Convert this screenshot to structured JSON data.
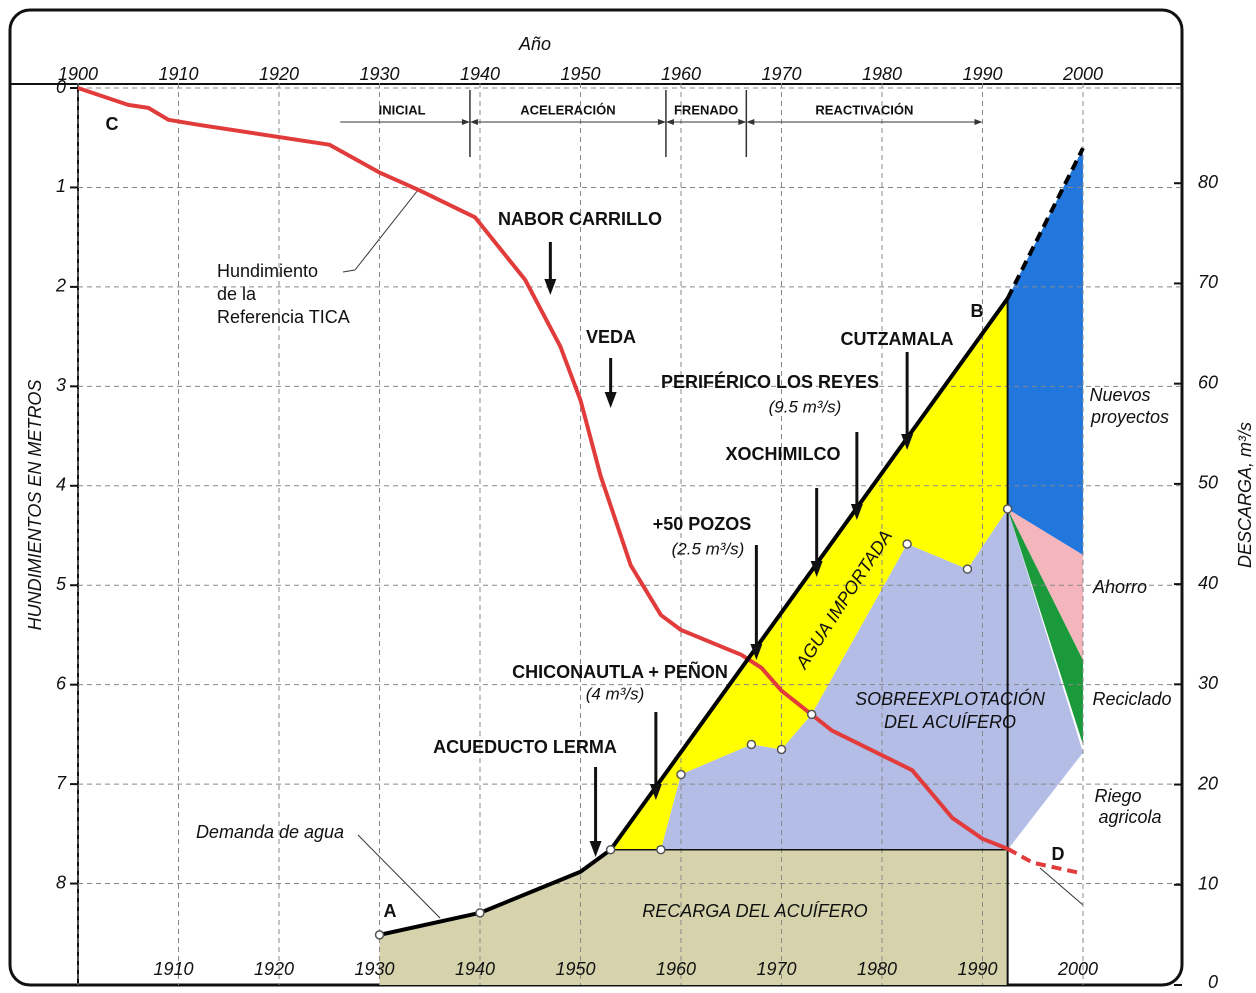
{
  "chart_data": {
    "type": "line",
    "xlabel": "Año",
    "ylabel": "HUNDIMIENTOS EN METROS",
    "y2label": "DESCARGA, m³/s",
    "xlim": [
      1900,
      2000
    ],
    "xticks": [
      1900,
      1910,
      1920,
      1930,
      1940,
      1950,
      1960,
      1970,
      1980,
      1990,
      2000
    ],
    "ylim": [
      0,
      9
    ],
    "yticks": [
      0,
      1,
      2,
      3,
      4,
      5,
      6,
      7,
      8
    ],
    "y_inverted": true,
    "y2lim": [
      0,
      90
    ],
    "y2ticks": [
      0,
      10,
      20,
      30,
      40,
      50,
      60,
      70,
      80
    ],
    "grid": true,
    "series": [
      {
        "color": "#e23b3b",
        "x": [
          1900,
          1905,
          1907,
          1909,
          1912,
          1925,
          1930,
          1934,
          1939.5,
          1944.5,
          1948,
          1950,
          1952,
          1955,
          1958,
          1960,
          1966,
          1968,
          1970,
          1975,
          1983,
          1987,
          1990,
          1992.5
        ],
        "values": [
          0,
          0.17,
          0.2,
          0.32,
          0.37,
          0.57,
          0.85,
          1.03,
          1.3,
          1.93,
          2.6,
          3.14,
          3.9,
          4.8,
          5.3,
          5.45,
          5.7,
          5.83,
          6.06,
          6.46,
          6.86,
          7.34,
          7.55,
          7.65
        ]
      },
      {
        "color": "#e23b3b",
        "dashed": true,
        "x": [
          1992.5,
          1995,
          2000
        ],
        "values": [
          7.65,
          7.79,
          7.9
        ]
      },
      {
        "color": "#000000",
        "axis": "y2",
        "x": [
          1930,
          1940,
          1950,
          1953,
          1992.5
        ],
        "values": [
          5,
          7.2,
          11.3,
          13.5,
          68.5
        ]
      },
      {
        "color": "#000000",
        "axis": "y2",
        "dashed": true,
        "x": [
          1992.5,
          2000
        ],
        "values": [
          68.5,
          83.5
        ]
      }
    ],
    "areas": [
      {
        "color": "#d6d3ac",
        "x": [
          1930,
          1940,
          1950,
          1953,
          1992.5,
          1992.5,
          1930
        ],
        "values": [
          5,
          7.2,
          11.3,
          13.5,
          13.5,
          0,
          0
        ]
      },
      {
        "color": "#ffff00",
        "x": [
          1953,
          1992.5,
          1992.5,
          1988.5,
          1982.5,
          1973,
          1970,
          1967,
          1960,
          1958
        ],
        "values": [
          13.5,
          68.5,
          47.5,
          41.5,
          44,
          27,
          23.5,
          24,
          21,
          13.5
        ]
      },
      {
        "color": "#b3bde6",
        "x": [
          1958,
          1960,
          1967,
          1970,
          1973,
          1982.5,
          1988.5,
          1992.5,
          2000,
          1992.5
        ],
        "values": [
          13.5,
          21,
          24,
          23.5,
          27,
          44,
          41.5,
          47.5,
          23.2,
          13.5
        ]
      },
      {
        "color": "#2277dd",
        "x": [
          1992.5,
          2000,
          2000,
          1992.5
        ],
        "values": [
          68.5,
          83.5,
          42.9,
          47.5
        ]
      },
      {
        "color": "#f5b5bd",
        "x": [
          1992.5,
          2000,
          2000
        ],
        "values": [
          47.5,
          42.9,
          32.4
        ]
      },
      {
        "color": "#1a9a3a",
        "x": [
          1992.5,
          2000,
          2000
        ],
        "values": [
          47.5,
          32.4,
          24
        ]
      }
    ],
    "phases": [
      {
        "name": "INICIAL",
        "start": 1925.5,
        "end": 1939
      },
      {
        "name": "ACELERACIÓN",
        "start": 1939,
        "end": 1958.5
      },
      {
        "name": "FRENADO",
        "start": 1958.5,
        "end": 1966.5
      },
      {
        "name": "REACTIVACIÓN",
        "start": 1966.5,
        "end": 1990
      }
    ],
    "events": [
      {
        "label": "NABOR CARRILLO",
        "year": 1947
      },
      {
        "label": "VEDA",
        "year": 1953
      },
      {
        "label": "PERIFÉRICO LOS REYES",
        "note": "(9.5 m³/s)",
        "year": 1977.5
      },
      {
        "label": "CUTZAMALA",
        "year": 1982.5
      },
      {
        "label": "XOCHIMILCO",
        "year": 1973.5
      },
      {
        "label": "+50 POZOS",
        "note": "(2.5 m³/s)",
        "year": 1967.5
      },
      {
        "label": "CHICONAUTLA + PEÑON",
        "note": "(4 m³/s)",
        "year": 1957.5
      },
      {
        "label": "ACUEDUCTO LERMA",
        "year": 1951.5
      }
    ],
    "annotations": [
      "C",
      "A",
      "B",
      "D",
      "Hundimiento",
      "de la",
      "Referencia TICA",
      "Demanda de agua",
      "RECARGA DEL ACUÍFERO",
      "SOBREEXPLOTACIÓN",
      "DEL ACUÍFERO",
      "AGUA IMPORTADA",
      "Nuevos",
      "proyectos",
      "Ahorro",
      "Reciclado",
      "Riego",
      "agricola"
    ]
  }
}
